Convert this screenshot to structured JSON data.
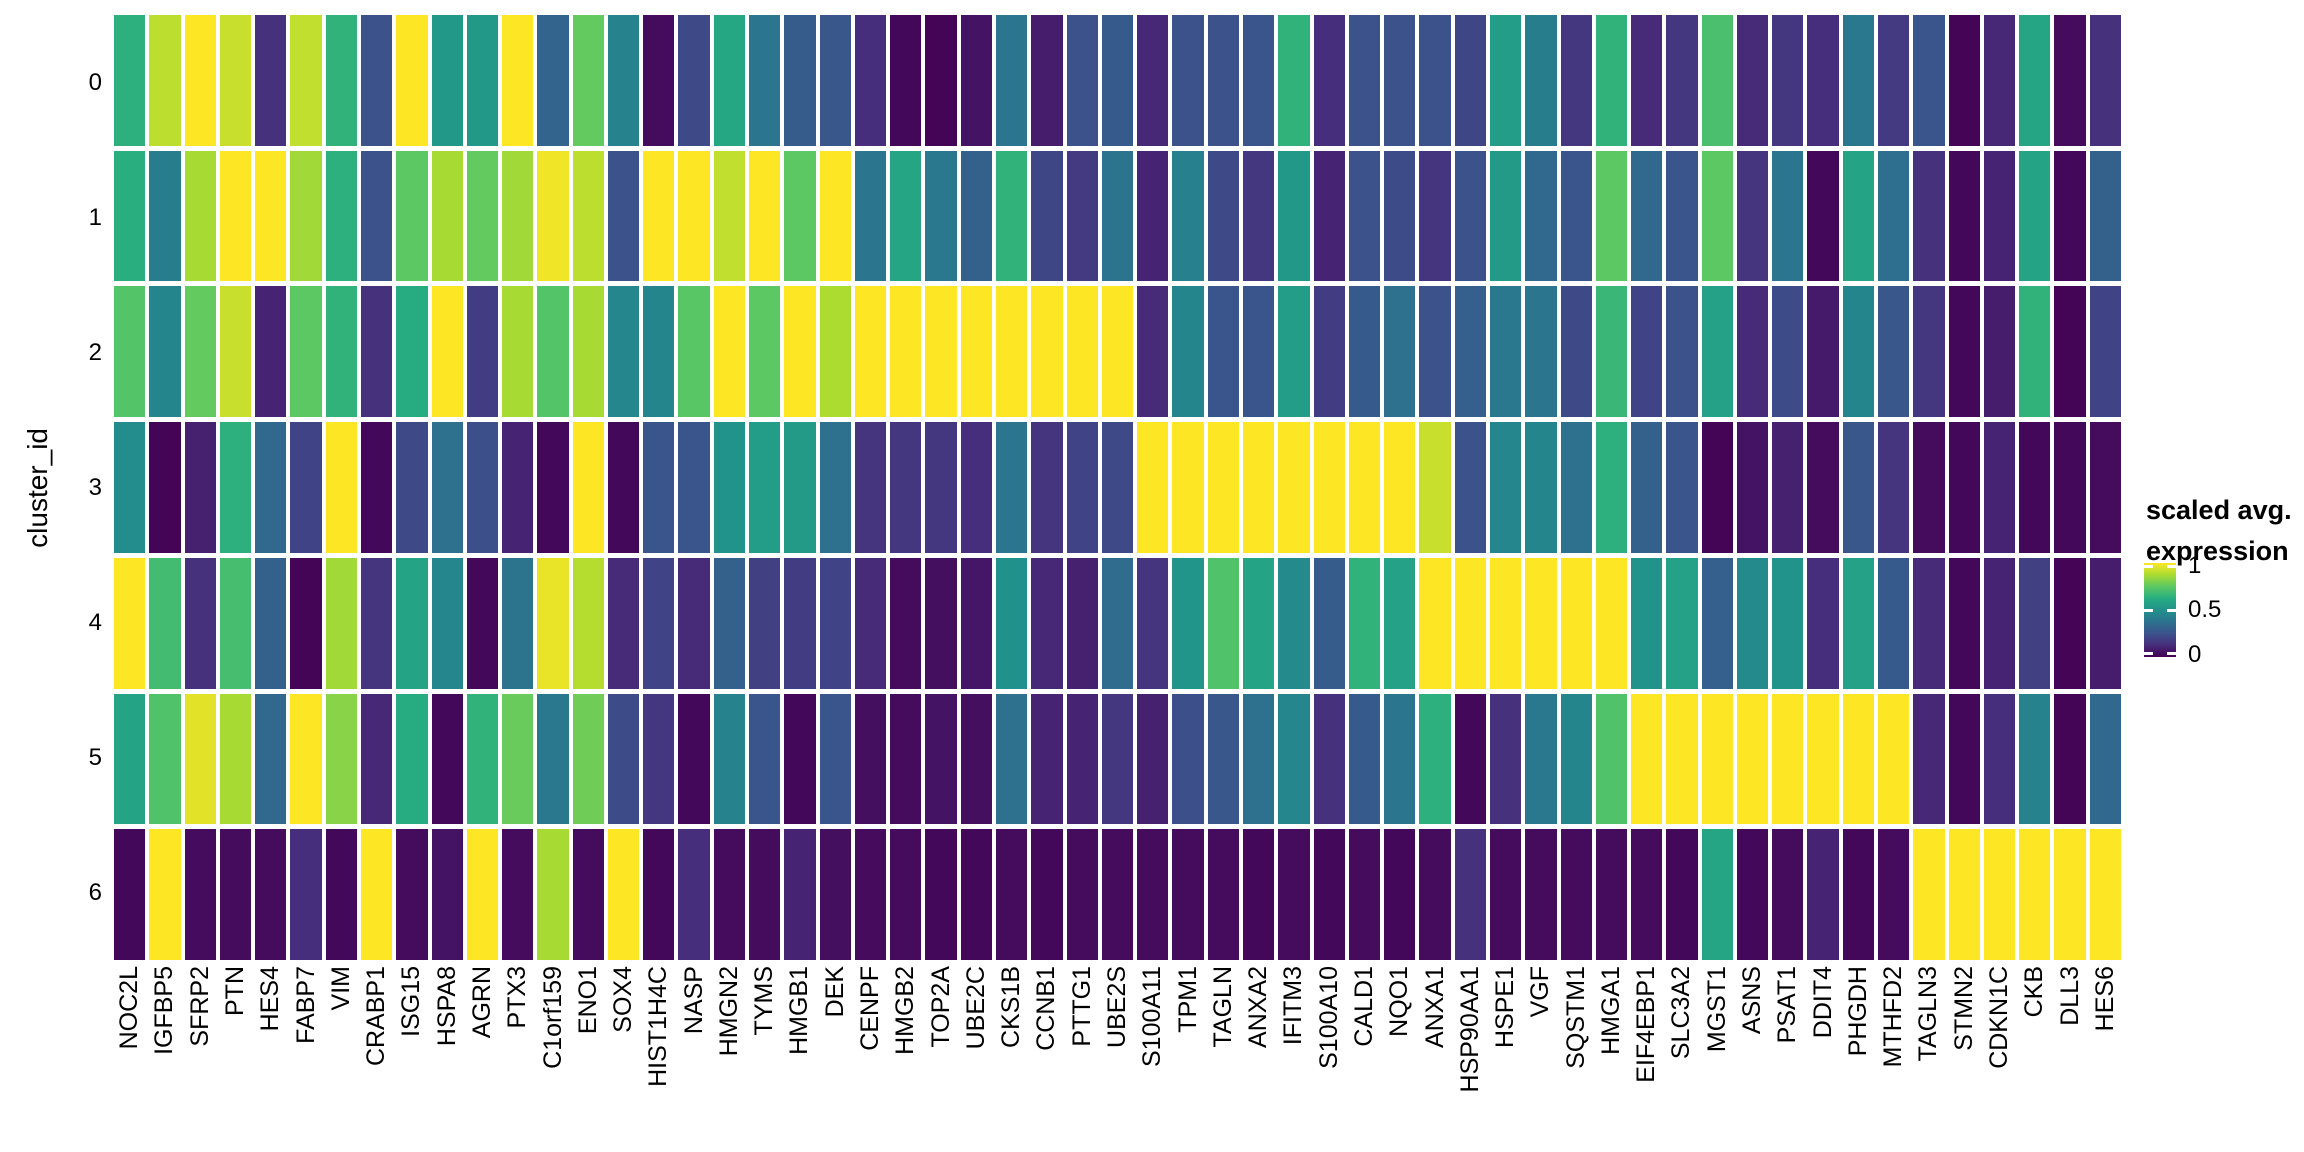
{
  "figure": {
    "background": "#ffffff"
  },
  "y_axis": {
    "title": "cluster_id"
  },
  "legend": {
    "title_line1": "scaled avg.",
    "title_line2": "expression",
    "tick_labels": [
      "1",
      "0.5",
      "0"
    ]
  },
  "colormap": {
    "name": "viridis",
    "stops": [
      "#440154",
      "#472d7b",
      "#3b528b",
      "#2c728e",
      "#21918c",
      "#27ad81",
      "#5cc863",
      "#aadc32",
      "#fde725"
    ]
  },
  "chart_data": {
    "type": "heatmap",
    "title": "",
    "xlabel": "",
    "ylabel": "cluster_id",
    "legend_title": "scaled avg. expression",
    "value_range": [
      0,
      1
    ],
    "grid": false,
    "legend_position": "right",
    "x_categories": [
      "NOC2L",
      "IGFBP5",
      "SFRP2",
      "PTN",
      "HES4",
      "FABP7",
      "VIM",
      "CRABP1",
      "ISG15",
      "HSPA8",
      "AGRN",
      "PTX3",
      "C1orf159",
      "ENO1",
      "SOX4",
      "HIST1H4C",
      "NASP",
      "HMGN2",
      "TYMS",
      "HMGB1",
      "DEK",
      "CENPF",
      "HMGB2",
      "TOP2A",
      "UBE2C",
      "CKS1B",
      "CCNB1",
      "PTTG1",
      "UBE2S",
      "S100A11",
      "TPM1",
      "TAGLN",
      "ANXA2",
      "IFITM3",
      "S100A10",
      "CALD1",
      "NQO1",
      "ANXA1",
      "HSP90AA1",
      "HSPE1",
      "VGF",
      "SQSTM1",
      "HMGA1",
      "EIF4EBP1",
      "SLC3A2",
      "MGST1",
      "ASNS",
      "PSAT1",
      "DDIT4",
      "PHGDH",
      "MTHFD2",
      "TAGLN3",
      "STMN2",
      "CDKN1C",
      "CKB",
      "DLL3",
      "HES6"
    ],
    "y_categories": [
      "0",
      "1",
      "2",
      "3",
      "4",
      "5",
      "6"
    ],
    "values": [
      [
        0.64,
        0.9,
        1.0,
        0.92,
        0.14,
        0.91,
        0.65,
        0.25,
        1.0,
        0.53,
        0.53,
        1.0,
        0.32,
        0.76,
        0.44,
        0.03,
        0.22,
        0.6,
        0.39,
        0.29,
        0.27,
        0.13,
        0.02,
        0.01,
        0.05,
        0.39,
        0.08,
        0.25,
        0.28,
        0.11,
        0.25,
        0.25,
        0.26,
        0.65,
        0.13,
        0.25,
        0.25,
        0.25,
        0.21,
        0.55,
        0.42,
        0.16,
        0.65,
        0.12,
        0.16,
        0.71,
        0.12,
        0.16,
        0.13,
        0.4,
        0.17,
        0.26,
        0.01,
        0.11,
        0.59,
        0.03,
        0.14
      ],
      [
        0.63,
        0.42,
        0.87,
        1.0,
        1.0,
        0.86,
        0.64,
        0.25,
        0.75,
        0.87,
        0.76,
        0.86,
        0.98,
        0.9,
        0.25,
        1.0,
        1.0,
        0.91,
        1.0,
        0.75,
        1.0,
        0.39,
        0.59,
        0.4,
        0.31,
        0.65,
        0.21,
        0.17,
        0.38,
        0.1,
        0.43,
        0.22,
        0.16,
        0.53,
        0.1,
        0.25,
        0.23,
        0.15,
        0.25,
        0.54,
        0.34,
        0.26,
        0.75,
        0.34,
        0.26,
        0.75,
        0.15,
        0.39,
        0.02,
        0.58,
        0.36,
        0.14,
        0.02,
        0.1,
        0.58,
        0.02,
        0.31
      ],
      [
        0.73,
        0.45,
        0.76,
        0.92,
        0.1,
        0.75,
        0.65,
        0.14,
        0.62,
        1.0,
        0.18,
        0.87,
        0.73,
        0.87,
        0.46,
        0.45,
        0.74,
        1.0,
        0.75,
        1.0,
        0.88,
        1.0,
        1.0,
        1.0,
        1.0,
        1.0,
        1.0,
        1.0,
        1.0,
        0.12,
        0.45,
        0.26,
        0.26,
        0.55,
        0.18,
        0.28,
        0.37,
        0.25,
        0.3,
        0.4,
        0.39,
        0.22,
        0.67,
        0.2,
        0.25,
        0.57,
        0.12,
        0.23,
        0.07,
        0.45,
        0.27,
        0.16,
        0.02,
        0.08,
        0.65,
        0.01,
        0.2
      ],
      [
        0.48,
        0.01,
        0.09,
        0.64,
        0.34,
        0.2,
        1.0,
        0.02,
        0.22,
        0.37,
        0.24,
        0.1,
        0.02,
        1.0,
        0.02,
        0.26,
        0.26,
        0.51,
        0.55,
        0.54,
        0.37,
        0.15,
        0.16,
        0.16,
        0.13,
        0.39,
        0.15,
        0.2,
        0.22,
        1.0,
        1.0,
        1.0,
        1.0,
        1.0,
        1.0,
        1.0,
        1.0,
        0.92,
        0.25,
        0.46,
        0.45,
        0.37,
        0.64,
        0.31,
        0.26,
        0.01,
        0.05,
        0.09,
        0.03,
        0.27,
        0.15,
        0.03,
        0.02,
        0.1,
        0.02,
        0.02,
        0.03
      ],
      [
        1.0,
        0.69,
        0.14,
        0.7,
        0.31,
        0.01,
        0.86,
        0.15,
        0.58,
        0.46,
        0.02,
        0.38,
        0.97,
        0.89,
        0.12,
        0.2,
        0.12,
        0.31,
        0.19,
        0.18,
        0.2,
        0.12,
        0.03,
        0.04,
        0.06,
        0.5,
        0.11,
        0.09,
        0.35,
        0.15,
        0.52,
        0.72,
        0.58,
        0.47,
        0.29,
        0.65,
        0.57,
        1.0,
        1.0,
        1.0,
        1.0,
        1.0,
        1.0,
        0.51,
        0.57,
        0.3,
        0.47,
        0.51,
        0.13,
        0.57,
        0.28,
        0.12,
        0.02,
        0.1,
        0.19,
        0.01,
        0.08
      ],
      [
        0.58,
        0.72,
        0.96,
        0.87,
        0.34,
        1.0,
        0.82,
        0.11,
        0.62,
        0.02,
        0.65,
        0.77,
        0.4,
        0.78,
        0.23,
        0.16,
        0.02,
        0.44,
        0.26,
        0.02,
        0.26,
        0.04,
        0.03,
        0.05,
        0.04,
        0.37,
        0.1,
        0.1,
        0.16,
        0.09,
        0.24,
        0.27,
        0.37,
        0.46,
        0.14,
        0.28,
        0.39,
        0.64,
        0.02,
        0.14,
        0.4,
        0.45,
        0.72,
        1.0,
        1.0,
        1.0,
        1.0,
        1.0,
        1.0,
        1.0,
        1.0,
        0.11,
        0.02,
        0.13,
        0.44,
        0.01,
        0.34
      ],
      [
        0.02,
        1.0,
        0.03,
        0.03,
        0.03,
        0.13,
        0.02,
        1.0,
        0.03,
        0.05,
        1.0,
        0.03,
        0.87,
        0.03,
        1.0,
        0.02,
        0.13,
        0.03,
        0.03,
        0.1,
        0.04,
        0.03,
        0.03,
        0.02,
        0.02,
        0.03,
        0.02,
        0.03,
        0.03,
        0.03,
        0.03,
        0.03,
        0.02,
        0.03,
        0.02,
        0.03,
        0.02,
        0.03,
        0.14,
        0.03,
        0.03,
        0.03,
        0.03,
        0.03,
        0.02,
        0.59,
        0.02,
        0.03,
        0.1,
        0.02,
        0.03,
        1.0,
        1.0,
        1.0,
        1.0,
        1.0,
        1.0
      ]
    ]
  }
}
